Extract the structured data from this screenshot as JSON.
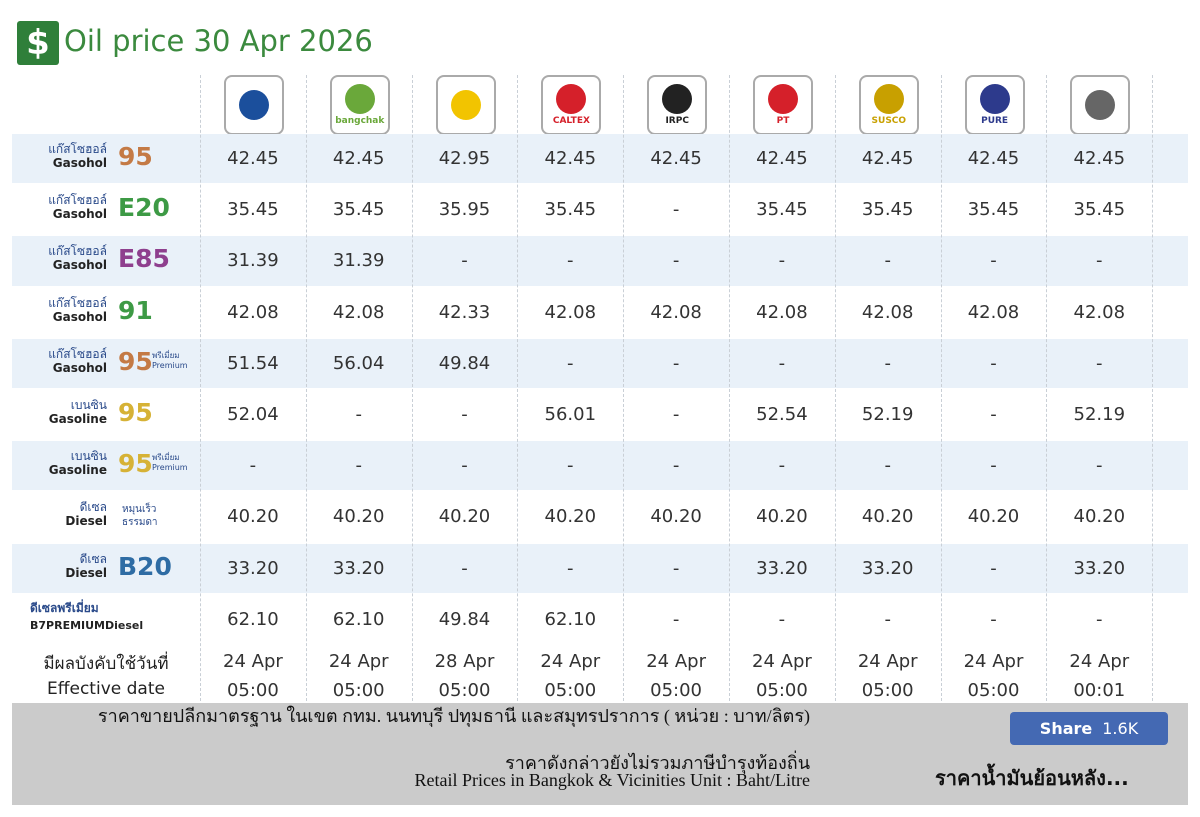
{
  "header": {
    "title": "Oil price 30 Apr 2026"
  },
  "brand_logos": {
    "1": "bangchak",
    "3": "CALTEX",
    "4": "IRPC",
    "5": "PT",
    "6": "SUSCO",
    "7": "PURE"
  },
  "rows": [
    {
      "th": "แก๊สโซฮอล์",
      "en": "Gasohol",
      "grade": "95",
      "color": "#c47a45",
      "prices": [
        "42.45",
        "42.45",
        "42.95",
        "42.45",
        "42.45",
        "42.45",
        "42.45",
        "42.45",
        "42.45"
      ]
    },
    {
      "th": "แก๊สโซฮอล์",
      "en": "Gasohol",
      "grade": "E20",
      "color": "#3d9a45",
      "prices": [
        "35.45",
        "35.45",
        "35.95",
        "35.45",
        "-",
        "35.45",
        "35.45",
        "35.45",
        "35.45"
      ]
    },
    {
      "th": "แก๊สโซฮอล์",
      "en": "Gasohol",
      "grade": "E85",
      "color": "#8e3f8e",
      "prices": [
        "31.39",
        "31.39",
        "-",
        "-",
        "-",
        "-",
        "-",
        "-",
        "-"
      ]
    },
    {
      "th": "แก๊สโซฮอล์",
      "en": "Gasohol",
      "grade": "91",
      "color": "#3d9a45",
      "prices": [
        "42.08",
        "42.08",
        "42.33",
        "42.08",
        "42.08",
        "42.08",
        "42.08",
        "42.08",
        "42.08"
      ]
    },
    {
      "th": "แก๊สโซฮอล์",
      "en": "Gasohol",
      "grade": "95",
      "grade_th": "พรีเมี่ยม",
      "grade_en": "Premium",
      "color": "#c47a45",
      "prices": [
        "51.54",
        "56.04",
        "49.84",
        "-",
        "-",
        "-",
        "-",
        "-",
        "-"
      ]
    },
    {
      "th": "เบนซิน",
      "en": "Gasoline",
      "grade": "95",
      "color": "#d6b236",
      "prices": [
        "52.04",
        "-",
        "-",
        "56.01",
        "-",
        "52.54",
        "52.19",
        "-",
        "52.19"
      ]
    },
    {
      "th": "เบนซิน",
      "en": "Gasoline",
      "grade": "95",
      "grade_th": "พรีเมี่ยม",
      "grade_en": "Premium",
      "color": "#d6b236",
      "prices": [
        "-",
        "-",
        "-",
        "-",
        "-",
        "-",
        "-",
        "-",
        "-"
      ]
    },
    {
      "th": "ดีเซล",
      "en": "Diesel",
      "note": [
        "หมุนเร็ว",
        "ธรรมดา"
      ],
      "prices": [
        "40.20",
        "40.20",
        "40.20",
        "40.20",
        "40.20",
        "40.20",
        "40.20",
        "40.20",
        "40.20"
      ]
    },
    {
      "th": "ดีเซล",
      "en": "Diesel",
      "grade": "B20",
      "color": "#2e6ca4",
      "prices": [
        "33.20",
        "33.20",
        "-",
        "-",
        "-",
        "33.20",
        "33.20",
        "-",
        "33.20"
      ]
    },
    {
      "th": "ดีเซลพรีเมี่ยม",
      "en": "B7PREMIUMDiesel",
      "prices": [
        "62.10",
        "62.10",
        "49.84",
        "62.10",
        "-",
        "-",
        "-",
        "-",
        "-"
      ]
    }
  ],
  "effective": {
    "th": "มีผลบังคับใช้วันที่",
    "en": "Effective date",
    "dates": [
      "24 Apr",
      "24 Apr",
      "28 Apr",
      "24 Apr",
      "24 Apr",
      "24 Apr",
      "24 Apr",
      "24 Apr",
      "24 Apr"
    ],
    "times": [
      "05:00",
      "05:00",
      "05:00",
      "05:00",
      "05:00",
      "05:00",
      "05:00",
      "05:00",
      "00:01"
    ]
  },
  "footer": {
    "line1": "ราคาขายปลีกมาตรฐาน ในเขต กทม. นนทบุรี ปทุมธานี และสมุทรปราการ ( หน่วย : บาท/ลิตร)",
    "line2": "ราคาดังกล่าวยังไม่รวมภาษีบำรุงท้องถิ่น",
    "line3": "Retail Prices in Bangkok & Vicinities Unit : Baht/Litre",
    "share": "Share",
    "share_count": "1.6K",
    "history_link": "ราคาน้ำมันย้อนหลัง..."
  }
}
